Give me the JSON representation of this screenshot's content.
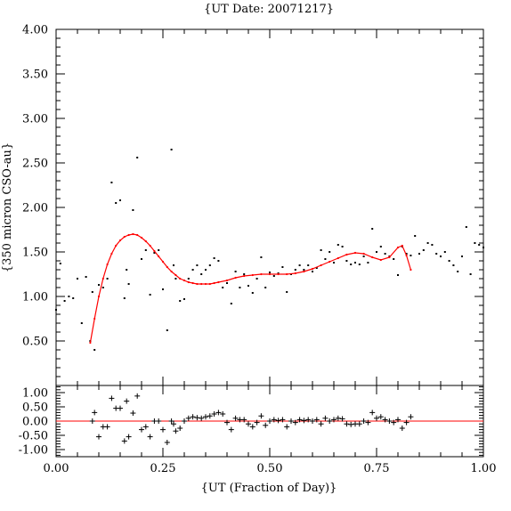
{
  "chart_data": [
    {
      "type": "scatter",
      "title": "{UT Date: 20071217}",
      "xlabel": "",
      "ylabel": "{350 micron CSO-au}",
      "xlim": [
        0.0,
        1.0
      ],
      "ylim": [
        0.0,
        4.0
      ],
      "yticks": [
        "4.00",
        "3.50",
        "3.00",
        "2.50",
        "2.00",
        "1.50",
        "1.00",
        "0.50"
      ],
      "xticks": [],
      "series": [
        {
          "marker": "dot",
          "color": "#000000",
          "x": [
            0.0,
            0.01,
            0.02,
            0.03,
            0.04,
            0.05,
            0.06,
            0.07,
            0.08,
            0.085,
            0.09,
            0.1,
            0.11,
            0.12,
            0.13,
            0.14,
            0.15,
            0.16,
            0.165,
            0.17,
            0.18,
            0.19,
            0.2,
            0.21,
            0.22,
            0.23,
            0.24,
            0.25,
            0.26,
            0.27,
            0.275,
            0.28,
            0.29,
            0.3,
            0.31,
            0.32,
            0.33,
            0.34,
            0.35,
            0.36,
            0.37,
            0.38,
            0.39,
            0.4,
            0.41,
            0.42,
            0.43,
            0.44,
            0.45,
            0.46,
            0.47,
            0.48,
            0.49,
            0.5,
            0.51,
            0.52,
            0.53,
            0.54,
            0.55,
            0.56,
            0.57,
            0.58,
            0.59,
            0.6,
            0.61,
            0.62,
            0.63,
            0.64,
            0.65,
            0.66,
            0.67,
            0.68,
            0.69,
            0.7,
            0.71,
            0.72,
            0.73,
            0.74,
            0.75,
            0.76,
            0.77,
            0.78,
            0.79,
            0.8,
            0.81,
            0.82,
            0.83,
            0.84,
            0.85,
            0.86,
            0.87,
            0.88,
            0.89,
            0.9,
            0.91,
            0.92,
            0.93,
            0.94,
            0.95,
            0.96,
            0.97,
            0.98,
            0.99,
            1.0
          ],
          "y": [
            0.85,
            1.37,
            0.95,
            1.0,
            0.98,
            1.2,
            0.7,
            1.22,
            0.5,
            1.05,
            0.4,
            1.13,
            1.1,
            1.2,
            2.28,
            2.05,
            2.08,
            0.98,
            1.3,
            1.14,
            1.97,
            2.56,
            1.42,
            1.52,
            1.02,
            1.49,
            1.52,
            1.08,
            0.62,
            2.65,
            1.35,
            1.2,
            0.95,
            0.97,
            1.2,
            1.3,
            1.35,
            1.25,
            1.3,
            1.35,
            1.43,
            1.4,
            1.1,
            1.15,
            0.92,
            1.28,
            1.1,
            1.25,
            1.12,
            1.04,
            1.2,
            1.44,
            1.1,
            1.27,
            1.23,
            1.26,
            1.33,
            1.05,
            1.25,
            1.3,
            1.35,
            1.3,
            1.35,
            1.28,
            1.32,
            1.52,
            1.42,
            1.5,
            1.38,
            1.58,
            1.56,
            1.4,
            1.36,
            1.38,
            1.36,
            1.45,
            1.38,
            1.76,
            1.5,
            1.56,
            1.48,
            1.45,
            1.42,
            1.24,
            1.56,
            1.48,
            1.46,
            1.68,
            1.48,
            1.52,
            1.6,
            1.58,
            1.48,
            1.45,
            1.5,
            1.4,
            1.35,
            1.28,
            1.45,
            1.78,
            1.25,
            1.6,
            1.58,
            1.55
          ]
        },
        {
          "marker": "line",
          "color": "#ff0000",
          "x": [
            0.08,
            0.09,
            0.1,
            0.11,
            0.12,
            0.13,
            0.14,
            0.15,
            0.16,
            0.17,
            0.18,
            0.19,
            0.2,
            0.21,
            0.22,
            0.23,
            0.24,
            0.25,
            0.26,
            0.27,
            0.28,
            0.29,
            0.3,
            0.31,
            0.32,
            0.33,
            0.34,
            0.35,
            0.36,
            0.37,
            0.38,
            0.4,
            0.42,
            0.44,
            0.46,
            0.48,
            0.5,
            0.52,
            0.54,
            0.56,
            0.58,
            0.6,
            0.62,
            0.64,
            0.66,
            0.68,
            0.7,
            0.72,
            0.74,
            0.76,
            0.78,
            0.8,
            0.81,
            0.82,
            0.83
          ],
          "y": [
            0.48,
            0.75,
            1.0,
            1.2,
            1.36,
            1.48,
            1.57,
            1.63,
            1.67,
            1.69,
            1.7,
            1.69,
            1.66,
            1.62,
            1.57,
            1.51,
            1.45,
            1.39,
            1.33,
            1.28,
            1.24,
            1.2,
            1.18,
            1.16,
            1.15,
            1.14,
            1.14,
            1.14,
            1.14,
            1.15,
            1.16,
            1.18,
            1.21,
            1.23,
            1.24,
            1.25,
            1.25,
            1.25,
            1.25,
            1.26,
            1.28,
            1.31,
            1.35,
            1.39,
            1.43,
            1.47,
            1.49,
            1.48,
            1.44,
            1.41,
            1.44,
            1.55,
            1.57,
            1.46,
            1.3
          ]
        }
      ]
    },
    {
      "type": "scatter",
      "xlabel": "{UT (Fraction of Day)}",
      "ylabel": "",
      "xlim": [
        0.0,
        1.0
      ],
      "ylim": [
        -1.25,
        1.25
      ],
      "yticks": [
        "1.00",
        "0.50",
        "0.00",
        "-0.50",
        "-1.00"
      ],
      "xticks": [
        "0.00",
        "0.25",
        "0.50",
        "0.75",
        "1.00"
      ],
      "series": [
        {
          "marker": "plus",
          "color": "#000000",
          "x": [
            0.085,
            0.09,
            0.1,
            0.11,
            0.12,
            0.13,
            0.14,
            0.15,
            0.16,
            0.165,
            0.17,
            0.18,
            0.19,
            0.2,
            0.21,
            0.22,
            0.23,
            0.24,
            0.25,
            0.26,
            0.27,
            0.275,
            0.28,
            0.29,
            0.3,
            0.31,
            0.32,
            0.33,
            0.34,
            0.35,
            0.36,
            0.37,
            0.38,
            0.39,
            0.4,
            0.41,
            0.42,
            0.43,
            0.44,
            0.45,
            0.46,
            0.47,
            0.48,
            0.49,
            0.5,
            0.51,
            0.52,
            0.53,
            0.54,
            0.55,
            0.56,
            0.57,
            0.58,
            0.59,
            0.6,
            0.61,
            0.62,
            0.63,
            0.64,
            0.65,
            0.66,
            0.67,
            0.68,
            0.69,
            0.7,
            0.71,
            0.72,
            0.73,
            0.74,
            0.75,
            0.76,
            0.77,
            0.78,
            0.79,
            0.8,
            0.81,
            0.82,
            0.83
          ],
          "y": [
            0.0,
            0.3,
            -0.55,
            -0.2,
            -0.2,
            0.8,
            0.45,
            0.45,
            -0.7,
            0.7,
            -0.55,
            0.28,
            0.88,
            -0.3,
            -0.2,
            -0.55,
            0.0,
            0.0,
            -0.3,
            -0.75,
            0.0,
            -0.1,
            -0.35,
            -0.25,
            0.0,
            0.1,
            0.15,
            0.12,
            0.1,
            0.15,
            0.18,
            0.25,
            0.3,
            0.25,
            -0.05,
            -0.3,
            0.1,
            0.05,
            0.05,
            -0.1,
            -0.2,
            -0.05,
            0.18,
            -0.15,
            0.0,
            0.05,
            0.02,
            0.05,
            -0.2,
            0.0,
            -0.05,
            0.05,
            0.02,
            0.05,
            0.0,
            0.05,
            -0.1,
            0.1,
            0.0,
            0.05,
            0.1,
            0.08,
            -0.1,
            -0.12,
            -0.1,
            -0.1,
            0.0,
            -0.05,
            0.3,
            0.1,
            0.15,
            0.05,
            0.0,
            -0.05,
            0.05,
            -0.25,
            -0.05,
            0.15
          ]
        },
        {
          "marker": "line",
          "color": "#ff0000",
          "x": [
            0.0,
            1.0
          ],
          "y": [
            0.0,
            0.0
          ]
        }
      ]
    }
  ]
}
